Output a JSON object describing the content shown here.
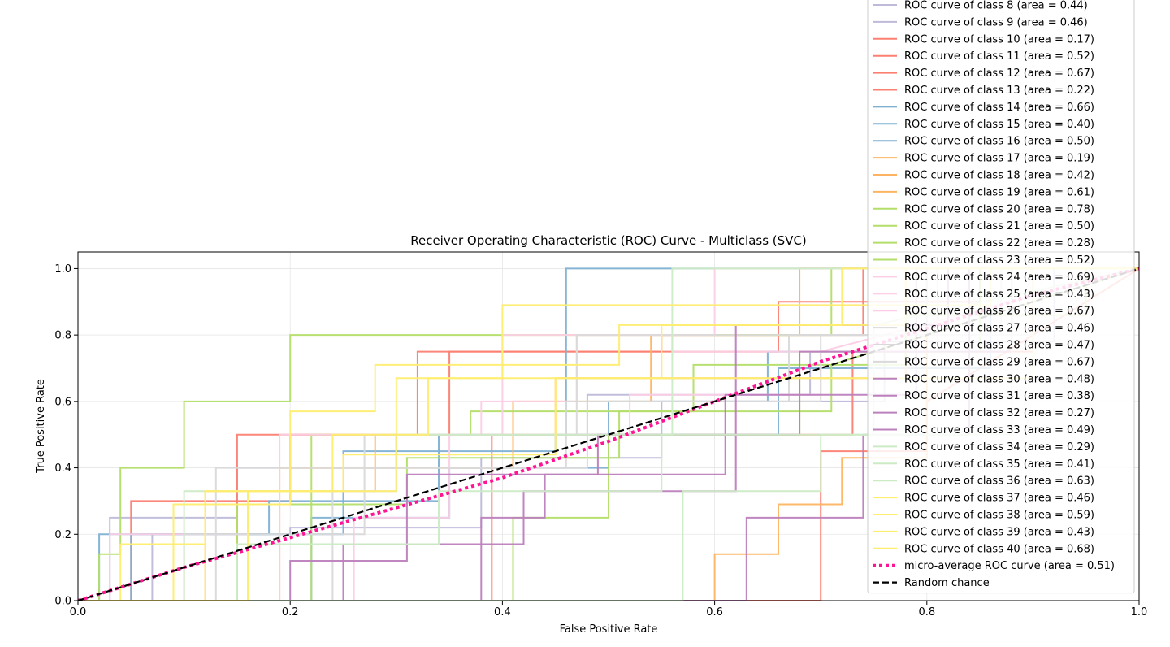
{
  "chart_data": {
    "type": "line",
    "title": "Receiver Operating Characteristic (ROC) Curve - Multiclass (SVC)",
    "xlabel": "False Positive Rate",
    "ylabel": "True Positive Rate",
    "xlim": [
      0.0,
      1.0
    ],
    "ylim": [
      0.0,
      1.05
    ],
    "x_ticks": [
      "0.0",
      "0.2",
      "0.4",
      "0.6",
      "0.8",
      "1.0"
    ],
    "y_ticks": [
      "0.0",
      "0.2",
      "0.4",
      "0.6",
      "0.8",
      "1.0"
    ],
    "grid": true,
    "legend_position": "right",
    "series": [
      {
        "name": "ROC curve of class 8 (area = 0.44)",
        "color": "#bebada",
        "x": [
          0,
          0.07,
          0.07,
          0.2,
          0.2,
          0.38,
          0.38,
          0.55,
          0.55,
          0.76,
          0.76,
          0.92,
          0.92,
          1
        ],
        "y": [
          0,
          0,
          0.2,
          0.2,
          0.22,
          0.22,
          0.43,
          0.43,
          0.6,
          0.6,
          0.78,
          0.78,
          1,
          1
        ]
      },
      {
        "name": "ROC curve of class 9 (area = 0.46)",
        "color": "#bebada",
        "x": [
          0,
          0.03,
          0.03,
          0.15,
          0.15,
          0.3,
          0.3,
          0.48,
          0.48,
          0.69,
          0.69,
          0.88,
          0.88,
          1
        ],
        "y": [
          0,
          0,
          0.25,
          0.25,
          0.4,
          0.4,
          0.5,
          0.5,
          0.62,
          0.62,
          0.75,
          0.75,
          1,
          1
        ]
      },
      {
        "name": "ROC curve of class 10 (area = 0.17)",
        "color": "#fb8072",
        "x": [
          0,
          0.7,
          0.7,
          0.8,
          0.8,
          1
        ],
        "y": [
          0,
          0,
          0.45,
          0.45,
          0.6,
          1
        ]
      },
      {
        "name": "ROC curve of class 11 (area = 0.52)",
        "color": "#fb8072",
        "x": [
          0,
          0.15,
          0.15,
          0.32,
          0.32,
          0.48,
          0.48,
          0.66,
          0.66,
          0.85,
          0.85,
          1
        ],
        "y": [
          0,
          0,
          0.5,
          0.5,
          0.75,
          0.75,
          0.75,
          0.75,
          0.9,
          0.9,
          1,
          1
        ]
      },
      {
        "name": "ROC curve of class 12 (area = 0.67)",
        "color": "#fb8072",
        "x": [
          0,
          0.05,
          0.05,
          0.2,
          0.2,
          0.35,
          0.35,
          0.55,
          0.55,
          0.74,
          0.74,
          1
        ],
        "y": [
          0,
          0,
          0.3,
          0.3,
          0.5,
          0.5,
          0.75,
          0.75,
          0.8,
          0.8,
          1,
          1
        ]
      },
      {
        "name": "ROC curve of class 13 (area = 0.22)",
        "color": "#fb8072",
        "x": [
          0,
          0.39,
          0.39,
          0.73,
          0.73,
          0.9,
          0.9,
          1
        ],
        "y": [
          0,
          0,
          0.5,
          0.5,
          0.75,
          0.75,
          1,
          1
        ]
      },
      {
        "name": "ROC curve of class 14 (area = 0.66)",
        "color": "#80b1d3",
        "x": [
          0,
          0.02,
          0.02,
          0.18,
          0.18,
          0.34,
          0.34,
          0.46,
          0.46,
          0.58,
          0.58,
          0.72,
          0.72,
          1
        ],
        "y": [
          0,
          0,
          0.2,
          0.2,
          0.3,
          0.3,
          0.5,
          0.5,
          1,
          1,
          1,
          1,
          1,
          1
        ]
      },
      {
        "name": "ROC curve of class 15 (area = 0.40)",
        "color": "#80b1d3",
        "x": [
          0,
          0.22,
          0.22,
          0.35,
          0.35,
          0.5,
          0.5,
          0.65,
          0.65,
          0.81,
          0.81,
          1
        ],
        "y": [
          0,
          0,
          0.25,
          0.25,
          0.4,
          0.4,
          0.6,
          0.6,
          0.75,
          0.75,
          1,
          1
        ]
      },
      {
        "name": "ROC curve of class 16 (area = 0.50)",
        "color": "#80b1d3",
        "x": [
          0,
          0.05,
          0.05,
          0.25,
          0.25,
          0.45,
          0.45,
          0.66,
          0.66,
          0.86,
          0.86,
          1
        ],
        "y": [
          0,
          0,
          0.2,
          0.2,
          0.45,
          0.45,
          0.5,
          0.5,
          0.7,
          0.7,
          1,
          1
        ]
      },
      {
        "name": "ROC curve of class 17 (area = 0.19)",
        "color": "#fdb462",
        "x": [
          0,
          0.6,
          0.6,
          0.66,
          0.66,
          0.72,
          0.72,
          0.8,
          0.8,
          1
        ],
        "y": [
          0,
          0,
          0.14,
          0.14,
          0.29,
          0.29,
          0.43,
          0.43,
          1,
          1
        ]
      },
      {
        "name": "ROC curve of class 18 (area = 0.42)",
        "color": "#fdb462",
        "x": [
          0,
          0.19,
          0.19,
          0.41,
          0.41,
          0.54,
          0.54,
          0.68,
          0.68,
          0.88,
          0.88,
          1
        ],
        "y": [
          0,
          0,
          0.4,
          0.4,
          0.6,
          0.6,
          0.8,
          0.8,
          1,
          1,
          1,
          1
        ]
      },
      {
        "name": "ROC curve of class 19 (area = 0.61)",
        "color": "#fdb462",
        "x": [
          0,
          0.12,
          0.12,
          0.28,
          0.28,
          0.45,
          0.45,
          0.62,
          0.62,
          0.78,
          0.78,
          1
        ],
        "y": [
          0,
          0,
          0.33,
          0.33,
          0.5,
          0.5,
          0.67,
          0.67,
          0.67,
          0.67,
          1,
          1
        ]
      },
      {
        "name": "ROC curve of class 20 (area = 0.78)",
        "color": "#b3de69",
        "x": [
          0,
          0.02,
          0.02,
          0.04,
          0.04,
          0.1,
          0.1,
          0.2,
          0.2,
          0.4,
          0.4,
          0.71,
          0.71,
          1
        ],
        "y": [
          0,
          0,
          0.14,
          0.14,
          0.4,
          0.4,
          0.6,
          0.6,
          0.8,
          0.8,
          0.8,
          0.8,
          1,
          1
        ]
      },
      {
        "name": "ROC curve of class 21 (area = 0.50)",
        "color": "#b3de69",
        "x": [
          0,
          0.41,
          0.41,
          0.5,
          0.5,
          0.68,
          0.68,
          0.85,
          0.85,
          1
        ],
        "y": [
          0,
          0,
          0.25,
          0.25,
          0.5,
          0.5,
          0.75,
          0.75,
          1,
          1
        ]
      },
      {
        "name": "ROC curve of class 22 (area = 0.28)",
        "color": "#b3de69",
        "x": [
          0,
          0.15,
          0.15,
          0.31,
          0.31,
          0.51,
          0.51,
          0.71,
          0.71,
          1
        ],
        "y": [
          0,
          0,
          0.29,
          0.29,
          0.43,
          0.43,
          0.57,
          0.57,
          0.71,
          1
        ]
      },
      {
        "name": "ROC curve of class 23 (area = 0.52)",
        "color": "#b3de69",
        "x": [
          0,
          0.22,
          0.22,
          0.37,
          0.37,
          0.58,
          0.58,
          0.78,
          0.78,
          0.95,
          0.95,
          1
        ],
        "y": [
          0,
          0,
          0.5,
          0.5,
          0.57,
          0.57,
          0.71,
          0.71,
          0.86,
          0.86,
          1,
          1
        ]
      },
      {
        "name": "ROC curve of class 24 (area = 0.69)",
        "color": "#fccde5",
        "x": [
          0,
          0.03,
          0.03,
          0.16,
          0.16,
          0.3,
          0.3,
          0.4,
          0.4,
          0.6,
          0.6,
          0.85,
          0.85,
          1
        ],
        "y": [
          0,
          0,
          0.2,
          0.2,
          0.33,
          0.33,
          0.5,
          0.5,
          0.8,
          0.8,
          1,
          1,
          1,
          1
        ]
      },
      {
        "name": "ROC curve of class 25 (area = 0.43)",
        "color": "#fccde5",
        "x": [
          0,
          0.26,
          0.26,
          0.35,
          0.35,
          0.52,
          0.52,
          0.7,
          0.7,
          1
        ],
        "y": [
          0,
          0,
          0.25,
          0.25,
          0.5,
          0.5,
          0.62,
          0.62,
          0.75,
          1
        ]
      },
      {
        "name": "ROC curve of class 26 (area = 0.67)",
        "color": "#fccde5",
        "x": [
          0,
          0.19,
          0.19,
          0.38,
          0.38,
          0.47,
          0.47,
          0.56,
          0.56,
          0.81,
          0.81,
          1
        ],
        "y": [
          0,
          0,
          0.5,
          0.5,
          0.6,
          0.6,
          0.8,
          0.8,
          0.75,
          0.75,
          1,
          1
        ]
      },
      {
        "name": "ROC curve of class 27 (area = 0.46)",
        "color": "#d9d9d9",
        "x": [
          0,
          0.1,
          0.1,
          0.27,
          0.27,
          0.48,
          0.48,
          0.7,
          0.7,
          0.9,
          0.9,
          1
        ],
        "y": [
          0,
          0,
          0.2,
          0.2,
          0.4,
          0.4,
          0.6,
          0.6,
          0.8,
          0.8,
          1,
          1
        ]
      },
      {
        "name": "ROC curve of class 28 (area = 0.47)",
        "color": "#d9d9d9",
        "x": [
          0,
          0.24,
          0.24,
          0.46,
          0.46,
          0.67,
          0.67,
          0.87,
          0.87,
          1
        ],
        "y": [
          0,
          0,
          0.4,
          0.4,
          0.6,
          0.6,
          0.8,
          0.8,
          1,
          1
        ]
      },
      {
        "name": "ROC curve of class 29 (area = 0.67)",
        "color": "#d9d9d9",
        "x": [
          0,
          0.13,
          0.13,
          0.27,
          0.27,
          0.47,
          0.47,
          0.6,
          0.6,
          0.8,
          0.8,
          1
        ],
        "y": [
          0,
          0,
          0.4,
          0.4,
          0.5,
          0.5,
          0.8,
          0.8,
          0.8,
          0.8,
          1,
          1
        ]
      },
      {
        "name": "ROC curve of class 30 (area = 0.48)",
        "color": "#bc80bd",
        "x": [
          0,
          0.2,
          0.2,
          0.31,
          0.31,
          0.49,
          0.49,
          0.68,
          0.68,
          0.88,
          0.88,
          1
        ],
        "y": [
          0,
          0,
          0.12,
          0.12,
          0.38,
          0.38,
          0.5,
          0.5,
          0.75,
          0.75,
          1,
          1
        ]
      },
      {
        "name": "ROC curve of class 31 (area = 0.38)",
        "color": "#bc80bd",
        "x": [
          0,
          0.38,
          0.38,
          0.44,
          0.44,
          0.61,
          0.61,
          0.79,
          0.79,
          1
        ],
        "y": [
          0,
          0,
          0.25,
          0.25,
          0.38,
          0.38,
          0.62,
          0.62,
          1,
          1
        ]
      },
      {
        "name": "ROC curve of class 32 (area = 0.27)",
        "color": "#bc80bd",
        "x": [
          0,
          0.63,
          0.63,
          0.74,
          0.74,
          0.84,
          0.84,
          1
        ],
        "y": [
          0,
          0,
          0.25,
          0.25,
          0.5,
          0.5,
          1,
          1
        ]
      },
      {
        "name": "ROC curve of class 33 (area = 0.49)",
        "color": "#bc80bd",
        "x": [
          0,
          0.25,
          0.25,
          0.42,
          0.42,
          0.62,
          0.62,
          0.82,
          0.82,
          1
        ],
        "y": [
          0,
          0,
          0.17,
          0.17,
          0.33,
          0.33,
          0.83,
          0.83,
          1,
          1
        ]
      },
      {
        "name": "ROC curve of class 34 (area = 0.29)",
        "color": "#ccebc5",
        "x": [
          0,
          0.57,
          0.57,
          0.7,
          0.7,
          0.88,
          0.88,
          1
        ],
        "y": [
          0,
          0,
          0.33,
          0.33,
          0.5,
          0.5,
          1,
          1
        ]
      },
      {
        "name": "ROC curve of class 35 (area = 0.41)",
        "color": "#ccebc5",
        "x": [
          0,
          0.15,
          0.15,
          0.34,
          0.34,
          0.55,
          0.55,
          0.75,
          0.75,
          1
        ],
        "y": [
          0,
          0,
          0.17,
          0.17,
          0.33,
          0.33,
          0.5,
          0.5,
          0.83,
          1
        ]
      },
      {
        "name": "ROC curve of class 36 (area = 0.63)",
        "color": "#ccebc5",
        "x": [
          0,
          0.1,
          0.1,
          0.3,
          0.3,
          0.56,
          0.56,
          0.75,
          0.75,
          1
        ],
        "y": [
          0,
          0,
          0.33,
          0.33,
          0.5,
          0.5,
          1,
          1,
          1,
          1
        ]
      },
      {
        "name": "ROC curve of class 37 (area = 0.46)",
        "color": "#ffed6f",
        "x": [
          0,
          0.04,
          0.04,
          0.12,
          0.12,
          0.24,
          0.24,
          0.33,
          0.33,
          0.55,
          0.55,
          0.78,
          0.78,
          1
        ],
        "y": [
          0,
          0,
          0.17,
          0.17,
          0.33,
          0.33,
          0.5,
          0.5,
          0.67,
          0.67,
          0.83,
          0.83,
          1,
          1
        ]
      },
      {
        "name": "ROC curve of class 38 (area = 0.59)",
        "color": "#ffed6f",
        "x": [
          0,
          0.09,
          0.09,
          0.2,
          0.2,
          0.28,
          0.28,
          0.51,
          0.51,
          0.72,
          0.72,
          1
        ],
        "y": [
          0,
          0,
          0.29,
          0.29,
          0.57,
          0.57,
          0.71,
          0.71,
          0.83,
          0.83,
          1,
          1
        ]
      },
      {
        "name": "ROC curve of class 39 (area = 0.43)",
        "color": "#ffed6f",
        "x": [
          0,
          0.16,
          0.16,
          0.25,
          0.25,
          0.45,
          0.45,
          0.68,
          0.68,
          0.9,
          0.9,
          1
        ],
        "y": [
          0,
          0,
          0.33,
          0.33,
          0.44,
          0.44,
          0.67,
          0.67,
          0.67,
          0.67,
          1,
          1
        ]
      },
      {
        "name": "ROC curve of class 40 (area = 0.68)",
        "color": "#ffed6f",
        "x": [
          0,
          0.12,
          0.12,
          0.3,
          0.3,
          0.4,
          0.4,
          0.65,
          0.65,
          0.86,
          0.86,
          1
        ],
        "y": [
          0,
          0,
          0.33,
          0.33,
          0.67,
          0.67,
          0.89,
          0.89,
          0.89,
          0.89,
          1,
          1
        ]
      },
      {
        "name": "micro-average ROC curve (area = 0.51)",
        "color": "#ff1493",
        "dash": "dotted",
        "x": [
          0,
          0.1,
          0.2,
          0.3,
          0.4,
          0.5,
          0.6,
          0.7,
          0.8,
          0.9,
          1
        ],
        "y": [
          0,
          0.1,
          0.19,
          0.28,
          0.37,
          0.48,
          0.6,
          0.72,
          0.82,
          0.92,
          1
        ]
      },
      {
        "name": "Random chance",
        "color": "#000000",
        "dash": "dashed",
        "x": [
          0,
          1
        ],
        "y": [
          0,
          1
        ]
      }
    ]
  }
}
